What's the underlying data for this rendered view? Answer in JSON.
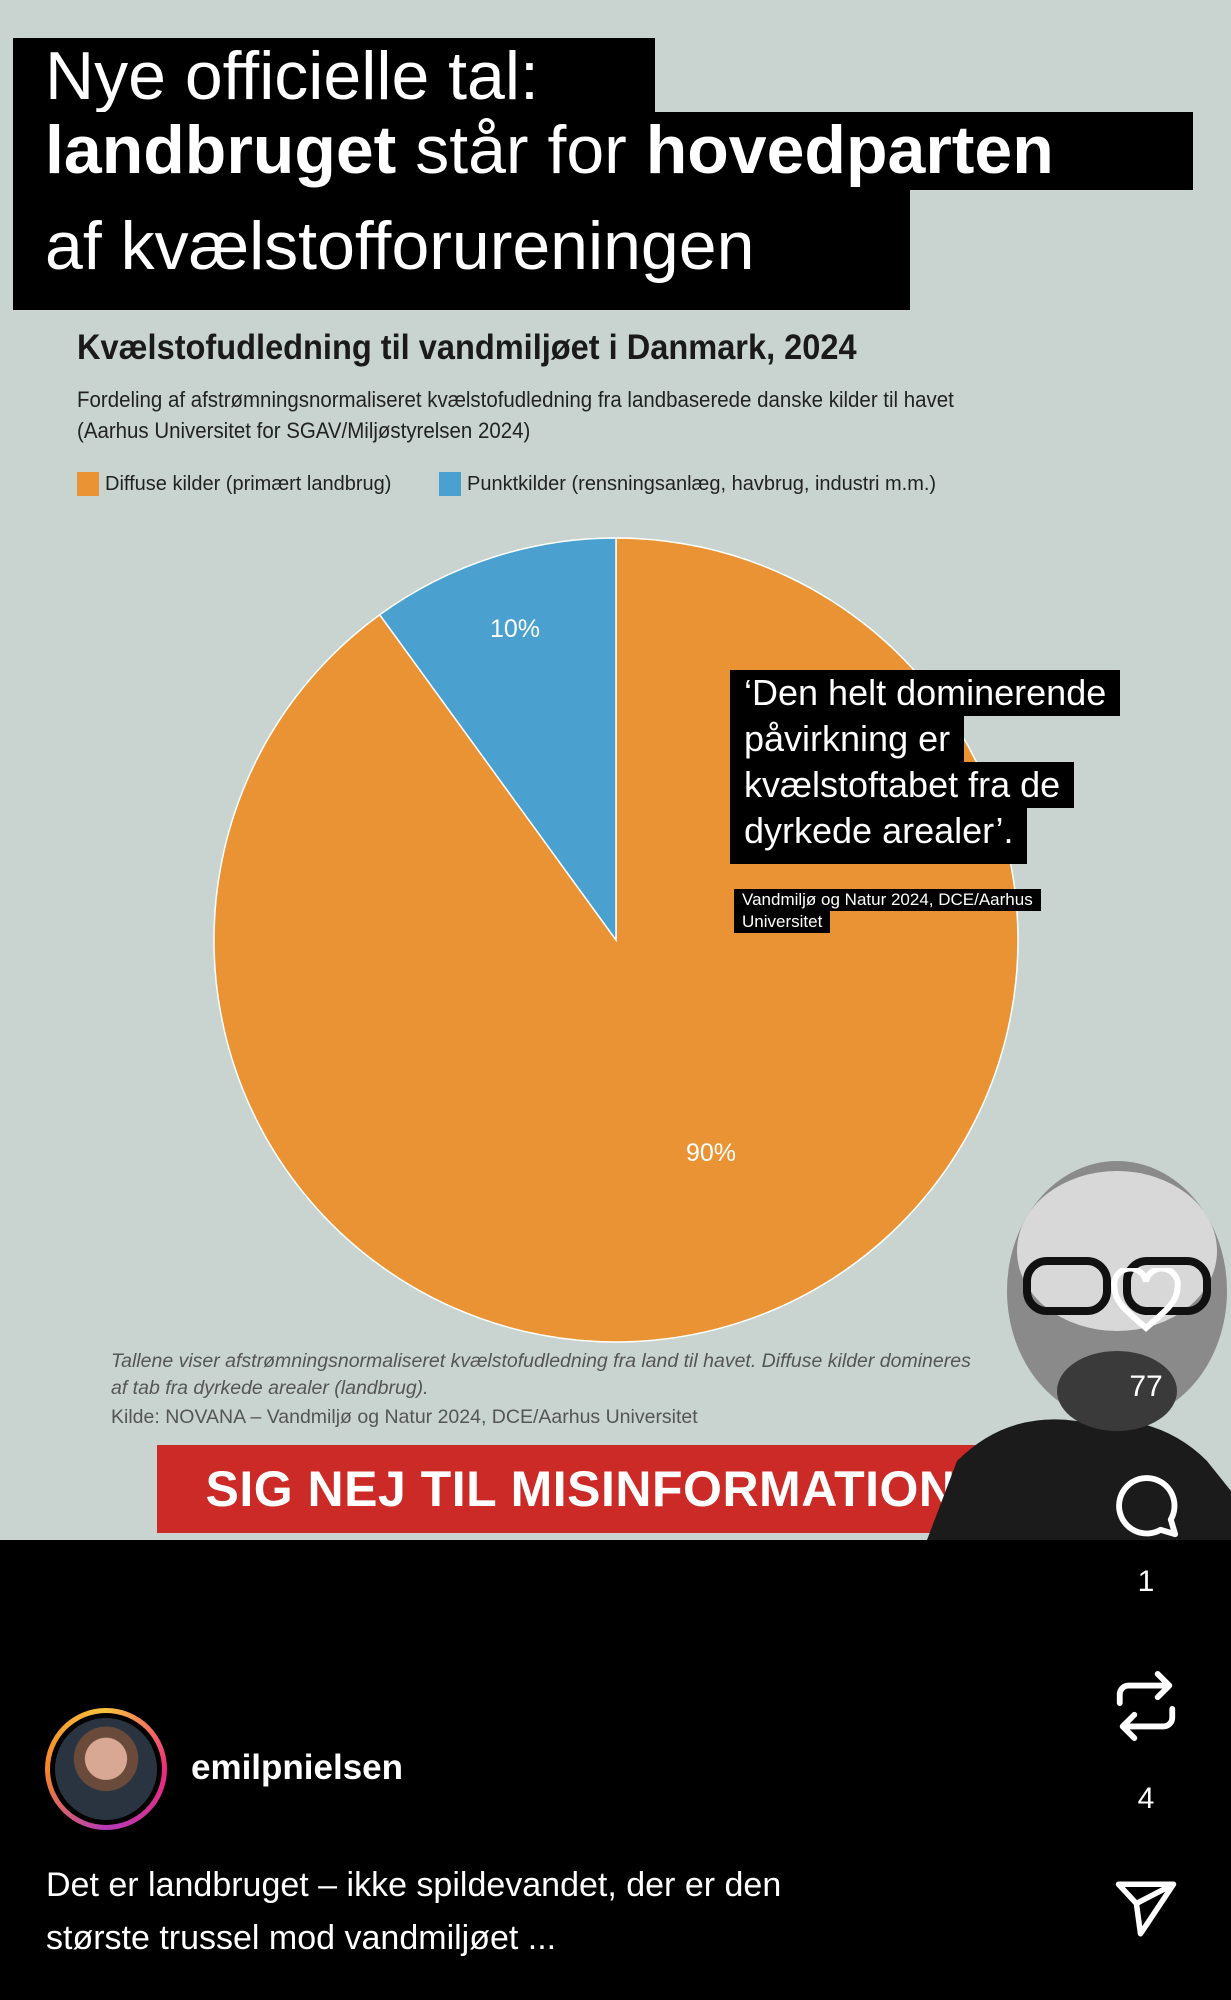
{
  "headline": {
    "line1": "Nye officielle tal:",
    "line2_bold1": "landbruget",
    "line2_mid": " står for ",
    "line2_bold2": "hovedparten",
    "line3": "af kvælstofforureningen"
  },
  "chart_data": {
    "type": "pie",
    "title": "Kvælstofudledning til vandmiljøet i Danmark, 2024",
    "subtitle": [
      "Fordeling af afstrømningsnormaliseret kvælstofudledning fra landbaserede danske kilder til havet",
      "(Aarhus Universitet for SGAV/Miljøstyrelsen 2024)"
    ],
    "legend": [
      "Diffuse kilder (primært landbrug)",
      "Punktkilder (rensningsanlæg, havbrug, industri m.m.)"
    ],
    "legend_placement": "top-left",
    "slices": [
      {
        "name": "Diffuse kilder (primært landbrug)",
        "value": 90,
        "label": "90%",
        "color": "#ea9334"
      },
      {
        "name": "Punktkilder (rensningsanlæg, havbrug, industri m.m.)",
        "value": 10,
        "label": "10%",
        "color": "#4aa0cf"
      }
    ],
    "footnote": [
      "Tallene viser afstrømningsnormaliseret kvælstofudledning fra land til havet. Diffuse kilder domineres",
      "af tab fra dyrkede arealer (landbrug).",
      "Kilde: NOVANA – Vandmiljø og Natur 2024, DCE/Aarhus Universitet"
    ]
  },
  "quote": {
    "lines": [
      "‘Den helt dominerende",
      "påvirkning er",
      "kvælstoftabet fra de",
      "dyrkede arealer’."
    ],
    "source": [
      "Vandmiljø og Natur 2024, DCE/Aarhus",
      "Universitet"
    ]
  },
  "banner": "SIG NEJ TIL MISINFORMATION",
  "actions": {
    "likes": "77",
    "comments": "1",
    "reposts": "4"
  },
  "icons": [
    "heart-icon",
    "comment-icon",
    "repost-icon",
    "send-icon"
  ],
  "user": {
    "name": "emilpnielsen"
  },
  "caption": [
    "Det er landbruget – ikke spildevandet, der er den",
    "største trussel mod vandmiljøet ..."
  ]
}
